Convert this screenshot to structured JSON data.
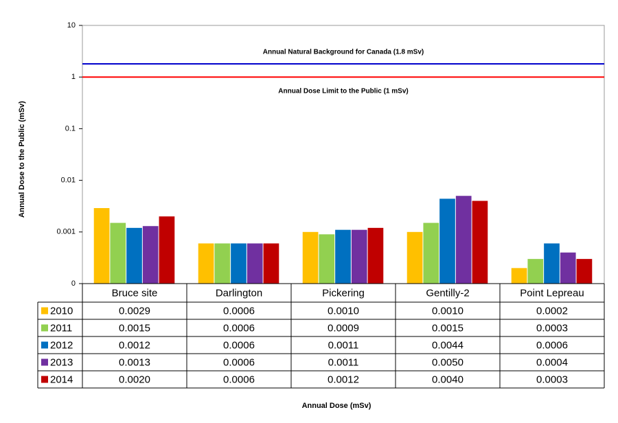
{
  "chart_data": {
    "type": "bar",
    "y_label": "Annual Dose to the Public (mSv)",
    "x_label": "Annual Dose (mSv)",
    "log_scale": true,
    "grid": false,
    "ylim": [
      0.0001,
      10
    ],
    "yticks": [
      {
        "value": 0.0001,
        "label": "0"
      },
      0.001,
      0.01,
      0.1,
      1,
      10
    ],
    "reference_lines": [
      {
        "value": 1.8,
        "color": "#0000cc",
        "label": "Annual Natural Background for Canada  (1.8 mSv)"
      },
      {
        "value": 1,
        "color": "#ff0000",
        "label": "Annual Dose Limit to the Public (1 mSv)"
      }
    ],
    "categories": [
      "Bruce site",
      "Darlington",
      "Pickering",
      "Gentilly-2",
      "Point Lepreau"
    ],
    "series": [
      {
        "name": "2010",
        "color": "#ffc000",
        "values": [
          0.0029,
          0.0006,
          0.001,
          0.001,
          0.0002
        ],
        "value_labels": [
          "0.0029",
          "0.0006",
          "0.0010",
          "0.0010",
          "0.0002"
        ]
      },
      {
        "name": "2011",
        "color": "#92d050",
        "values": [
          0.0015,
          0.0006,
          0.0009,
          0.0015,
          0.0003
        ],
        "value_labels": [
          "0.0015",
          "0.0006",
          "0.0009",
          "0.0015",
          "0.0003"
        ]
      },
      {
        "name": "2012",
        "color": "#0070c0",
        "values": [
          0.0012,
          0.0006,
          0.0011,
          0.0044,
          0.0006
        ],
        "value_labels": [
          "0.0012",
          "0.0006",
          "0.0011",
          "0.0044",
          "0.0006"
        ]
      },
      {
        "name": "2013",
        "color": "#7030a0",
        "values": [
          0.0013,
          0.0006,
          0.0011,
          0.005,
          0.0004
        ],
        "value_labels": [
          "0.0013",
          "0.0006",
          "0.0011",
          "0.0050",
          "0.0004"
        ]
      },
      {
        "name": "2014",
        "color": "#c00000",
        "values": [
          0.002,
          0.0006,
          0.0012,
          0.004,
          0.0003
        ],
        "value_labels": [
          "0.0020",
          "0.0006",
          "0.0012",
          "0.0040",
          "0.0003"
        ]
      }
    ]
  }
}
